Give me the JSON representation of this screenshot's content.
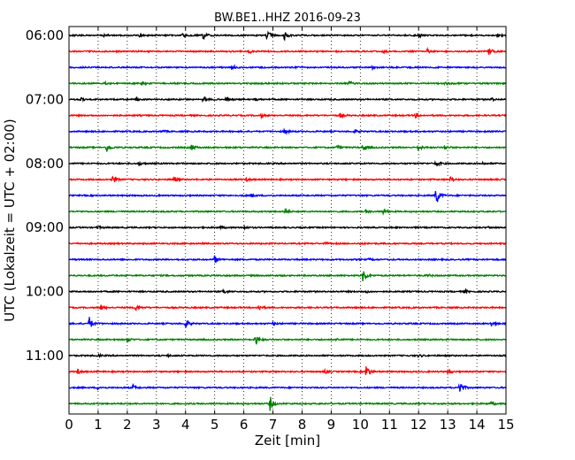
{
  "chart_data": {
    "type": "line",
    "title": "BW.BE1..HHZ 2016-09-23",
    "xlabel": "Zeit  [min]",
    "ylabel": "UTC (Lokalzeit = UTC + 02:00)",
    "xlim": [
      0,
      15
    ],
    "xticks": [
      "0",
      "1",
      "2",
      "3",
      "4",
      "5",
      "6",
      "7",
      "8",
      "9",
      "10",
      "11",
      "12",
      "13",
      "14",
      "15"
    ],
    "yticks": [
      "06:00",
      "07:00",
      "08:00",
      "09:00",
      "10:00",
      "11:00"
    ],
    "grid": "vertical dotted lines at each minute",
    "row_colors": [
      "#000000",
      "#ff0000",
      "#0000ff",
      "#008000"
    ],
    "rows_per_hour": 4,
    "minutes_per_row": 15,
    "traces": [
      {
        "start": "06:00",
        "events": [
          [
            1.2,
            0.22
          ],
          [
            2.4,
            0.18
          ],
          [
            3.9,
            0.3
          ],
          [
            4.6,
            0.55
          ],
          [
            6.8,
            0.6
          ],
          [
            7.4,
            0.55
          ],
          [
            12.0,
            0.28
          ],
          [
            14.7,
            0.2
          ]
        ]
      },
      {
        "start": "06:15",
        "events": [
          [
            6.2,
            0.2
          ],
          [
            10.8,
            0.2
          ],
          [
            12.3,
            0.25
          ],
          [
            14.4,
            0.55
          ]
        ]
      },
      {
        "start": "06:30",
        "events": [
          [
            0.4,
            0.15
          ],
          [
            5.6,
            0.3
          ],
          [
            7.8,
            0.18
          ],
          [
            10.4,
            0.15
          ]
        ]
      },
      {
        "start": "06:45",
        "events": [
          [
            1.2,
            0.2
          ],
          [
            2.5,
            0.22
          ],
          [
            9.6,
            0.3
          ],
          [
            12.9,
            0.22
          ]
        ]
      },
      {
        "start": "07:00",
        "events": [
          [
            0.4,
            0.2
          ],
          [
            2.3,
            0.22
          ],
          [
            4.6,
            0.35
          ],
          [
            5.4,
            0.25
          ],
          [
            6.4,
            0.22
          ],
          [
            14.5,
            0.18
          ]
        ]
      },
      {
        "start": "07:15",
        "events": [
          [
            6.6,
            0.18
          ],
          [
            9.3,
            0.3
          ],
          [
            11.9,
            0.25
          ]
        ]
      },
      {
        "start": "07:30",
        "events": [
          [
            3.2,
            0.12
          ],
          [
            7.4,
            0.3
          ],
          [
            9.8,
            0.2
          ]
        ]
      },
      {
        "start": "07:45",
        "events": [
          [
            1.3,
            0.6
          ],
          [
            4.2,
            0.4
          ],
          [
            9.2,
            0.3
          ],
          [
            10.1,
            0.45
          ],
          [
            12.0,
            0.35
          ],
          [
            12.9,
            0.3
          ]
        ]
      },
      {
        "start": "08:00",
        "events": [
          [
            2.4,
            0.22
          ],
          [
            12.6,
            0.4
          ],
          [
            14.2,
            0.15
          ]
        ]
      },
      {
        "start": "08:15",
        "events": [
          [
            1.5,
            0.55
          ],
          [
            3.6,
            0.4
          ],
          [
            6.1,
            0.2
          ],
          [
            13.1,
            0.3
          ]
        ]
      },
      {
        "start": "08:30",
        "events": [
          [
            6.3,
            0.22
          ],
          [
            12.6,
            1.3
          ]
        ]
      },
      {
        "start": "08:45",
        "events": [
          [
            7.4,
            0.35
          ],
          [
            10.2,
            0.2
          ],
          [
            10.8,
            0.35
          ]
        ]
      },
      {
        "start": "09:00",
        "events": [
          [
            1.0,
            0.15
          ],
          [
            5.2,
            0.15
          ],
          [
            6.0,
            0.18
          ],
          [
            14.4,
            0.12
          ]
        ]
      },
      {
        "start": "09:15",
        "events": [
          [
            8.8,
            0.12
          ],
          [
            10.0,
            0.12
          ]
        ]
      },
      {
        "start": "09:30",
        "events": [
          [
            5.0,
            0.45
          ],
          [
            10.3,
            0.12
          ]
        ]
      },
      {
        "start": "09:45",
        "events": [
          [
            10.1,
            0.95
          ],
          [
            12.3,
            0.2
          ]
        ]
      },
      {
        "start": "10:00",
        "events": [
          [
            5.3,
            0.3
          ],
          [
            10.2,
            0.12
          ],
          [
            13.6,
            0.2
          ]
        ]
      },
      {
        "start": "10:15",
        "events": [
          [
            1.1,
            0.35
          ],
          [
            2.3,
            0.45
          ],
          [
            6.5,
            0.4
          ]
        ]
      },
      {
        "start": "10:30",
        "events": [
          [
            0.7,
            0.8
          ],
          [
            4.0,
            0.55
          ],
          [
            7.0,
            0.2
          ],
          [
            14.5,
            0.35
          ]
        ]
      },
      {
        "start": "10:45",
        "events": [
          [
            2.0,
            0.35
          ],
          [
            6.4,
            0.8
          ],
          [
            9.2,
            0.15
          ]
        ]
      },
      {
        "start": "11:00",
        "events": [
          [
            1.0,
            0.15
          ],
          [
            3.4,
            0.12
          ],
          [
            12.0,
            0.15
          ]
        ]
      },
      {
        "start": "11:15",
        "events": [
          [
            0.3,
            0.3
          ],
          [
            8.8,
            0.25
          ],
          [
            10.2,
            0.9
          ],
          [
            13.0,
            0.3
          ]
        ]
      },
      {
        "start": "11:30",
        "events": [
          [
            1.0,
            0.2
          ],
          [
            2.2,
            0.3
          ],
          [
            13.4,
            1.0
          ]
        ]
      },
      {
        "start": "11:45",
        "events": [
          [
            6.9,
            0.9
          ],
          [
            14.5,
            0.25
          ]
        ]
      }
    ]
  }
}
